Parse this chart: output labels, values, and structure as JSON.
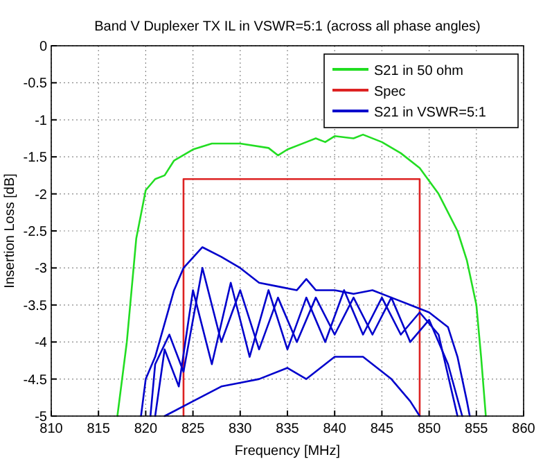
{
  "chart_data": {
    "type": "line",
    "title": "Band V Duplexer TX IL in VSWR=5:1 (across all phase angles)",
    "xlabel": "Frequency [MHz]",
    "ylabel": "Insertion Loss [dB]",
    "xlim": [
      810,
      860
    ],
    "ylim": [
      -5,
      0
    ],
    "xticks": [
      810,
      815,
      820,
      825,
      830,
      835,
      840,
      845,
      850,
      855,
      860
    ],
    "yticks": [
      -5,
      -4.5,
      -4,
      -3.5,
      -3,
      -2.5,
      -2,
      -1.5,
      -1,
      -0.5,
      0
    ],
    "grid": true,
    "legend": "top right",
    "marker": "none",
    "line_style": "solid",
    "series": [
      {
        "name": "S21 in 50 ohm",
        "color": "#22dd22",
        "x": [
          817,
          818,
          819,
          820,
          821,
          822,
          823,
          825,
          827,
          830,
          833,
          834,
          835,
          837,
          838,
          839,
          840,
          842,
          843,
          845,
          847,
          849,
          851,
          853,
          854,
          855,
          855.5,
          856
        ],
        "values": [
          -5,
          -4,
          -2.6,
          -1.95,
          -1.8,
          -1.75,
          -1.55,
          -1.4,
          -1.32,
          -1.32,
          -1.38,
          -1.48,
          -1.4,
          -1.3,
          -1.25,
          -1.3,
          -1.22,
          -1.25,
          -1.2,
          -1.3,
          -1.45,
          -1.65,
          -2,
          -2.5,
          -2.9,
          -3.5,
          -4.2,
          -5
        ]
      },
      {
        "name": "Spec",
        "color": "#dd2222",
        "x": [
          824,
          824,
          849,
          849
        ],
        "values": [
          -5,
          -1.8,
          -1.8,
          -5
        ]
      },
      {
        "name": "S21 in VSWR=5:1",
        "color": "#0000cc",
        "x": [
          819.5,
          820,
          821,
          823,
          824,
          826,
          828,
          830,
          832,
          834,
          836,
          837,
          838,
          840,
          842,
          844,
          846,
          848,
          850,
          852,
          853,
          854,
          854.3
        ],
        "values": [
          -5,
          -4.5,
          -4.2,
          -3.3,
          -3,
          -2.72,
          -2.85,
          -3,
          -3.2,
          -3.25,
          -3.3,
          -3.15,
          -3.3,
          -3.3,
          -3.35,
          -3.3,
          -3.4,
          -3.5,
          -3.6,
          -3.8,
          -4.2,
          -4.8,
          -5
        ]
      },
      {
        "color": "#0000cc",
        "x": [
          822,
          825,
          828,
          830,
          832,
          835,
          837,
          840,
          843,
          846,
          848,
          849
        ],
        "values": [
          -5,
          -4.8,
          -4.6,
          -4.55,
          -4.5,
          -4.35,
          -4.5,
          -4.2,
          -4.2,
          -4.5,
          -4.8,
          -5
        ]
      },
      {
        "color": "#0000cc",
        "x": [
          820.5,
          821,
          822.5,
          824,
          826,
          828,
          830,
          832,
          834,
          836,
          838,
          840,
          842,
          844,
          846,
          848,
          850,
          852,
          853.5
        ],
        "values": [
          -5,
          -4.3,
          -3.9,
          -4.4,
          -3,
          -4,
          -3.3,
          -4.1,
          -3.4,
          -4,
          -3.4,
          -3.9,
          -3.4,
          -3.9,
          -3.4,
          -4,
          -3.7,
          -4.3,
          -5
        ]
      },
      {
        "color": "#0000cc",
        "x": [
          821,
          822,
          823.5,
          825,
          827,
          829,
          831,
          833,
          835,
          837,
          839,
          841,
          843,
          845,
          847,
          849,
          851,
          853
        ],
        "values": [
          -5,
          -4.1,
          -4.6,
          -3.3,
          -4.3,
          -3.2,
          -4.2,
          -3.3,
          -4.1,
          -3.4,
          -4,
          -3.3,
          -3.9,
          -3.4,
          -3.9,
          -3.6,
          -3.9,
          -5
        ]
      }
    ]
  }
}
